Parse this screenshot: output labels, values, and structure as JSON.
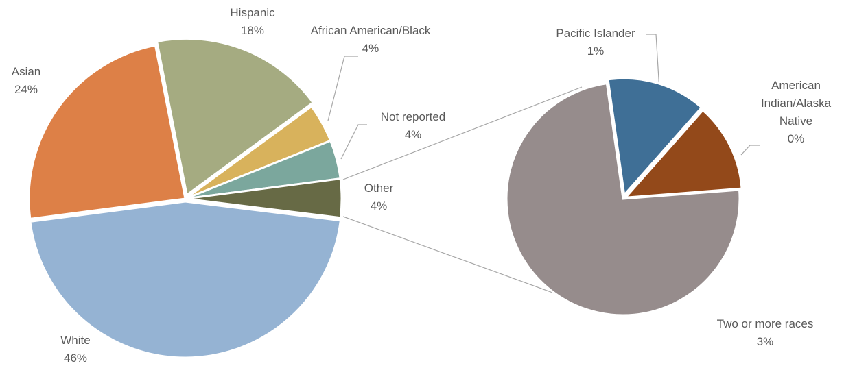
{
  "chart_data": [
    {
      "type": "pie",
      "categories": [
        "White",
        "Asian",
        "Hispanic",
        "African American/Black",
        "Not reported",
        "Other"
      ],
      "values": [
        46,
        24,
        18,
        4,
        4,
        4
      ],
      "value_labels": [
        "46%",
        "24%",
        "18%",
        "4%",
        "4%",
        "4%"
      ],
      "colors": [
        "#95b3d3",
        "#dd8047",
        "#a5ab81",
        "#d8b25c",
        "#7ba79d",
        "#676a45"
      ]
    },
    {
      "type": "pie",
      "categories": [
        "Pacific Islander",
        "American Indian/Alaska Native",
        "Two or more races"
      ],
      "values": [
        0.55,
        0.49,
        2.96
      ],
      "value_labels": [
        "1%",
        "0%",
        "3%"
      ],
      "colors": [
        "#3f6f96",
        "#93491a",
        "#968c8c"
      ]
    }
  ]
}
